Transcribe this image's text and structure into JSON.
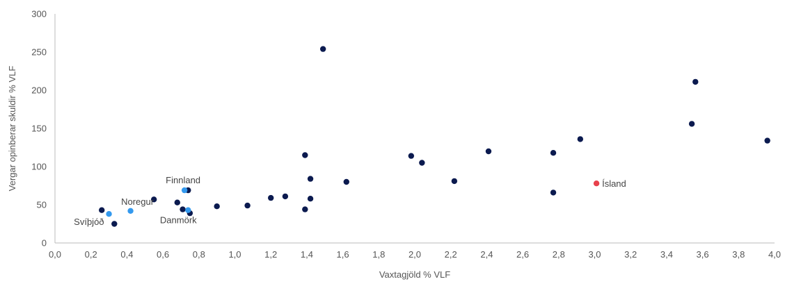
{
  "chart_data": {
    "type": "scatter",
    "title": "",
    "xlabel": "Vaxtagjöld % VLF",
    "ylabel": "Vergar opinberar skuldir % VLF",
    "xlim": [
      0,
      4.0
    ],
    "ylim": [
      0,
      300
    ],
    "x_ticks": [
      "0,0",
      "0,2",
      "0,4",
      "0,6",
      "0,8",
      "1,0",
      "1,2",
      "1,4",
      "1,6",
      "1,8",
      "2,0",
      "2,2",
      "2,4",
      "2,6",
      "2,8",
      "3,0",
      "3,2",
      "3,4",
      "3,6",
      "3,8",
      "4,0"
    ],
    "y_ticks": [
      "0",
      "50",
      "100",
      "150",
      "200",
      "250",
      "300"
    ],
    "grid": false,
    "colors": {
      "default": "#0b1a4f",
      "nordic": "#3399ee",
      "iceland": "#e8414c"
    },
    "points": [
      {
        "x": 0.26,
        "y": 43,
        "group": "default"
      },
      {
        "x": 0.33,
        "y": 25,
        "group": "default"
      },
      {
        "x": 0.55,
        "y": 57,
        "group": "default"
      },
      {
        "x": 0.68,
        "y": 53,
        "group": "default"
      },
      {
        "x": 0.71,
        "y": 44,
        "group": "default"
      },
      {
        "x": 0.74,
        "y": 69,
        "group": "default"
      },
      {
        "x": 0.75,
        "y": 39,
        "group": "default"
      },
      {
        "x": 0.9,
        "y": 48,
        "group": "default"
      },
      {
        "x": 1.07,
        "y": 49,
        "group": "default"
      },
      {
        "x": 1.2,
        "y": 59,
        "group": "default"
      },
      {
        "x": 1.28,
        "y": 61,
        "group": "default"
      },
      {
        "x": 1.39,
        "y": 115,
        "group": "default"
      },
      {
        "x": 1.39,
        "y": 44,
        "group": "default"
      },
      {
        "x": 1.42,
        "y": 84,
        "group": "default"
      },
      {
        "x": 1.42,
        "y": 58,
        "group": "default"
      },
      {
        "x": 1.49,
        "y": 254,
        "group": "default"
      },
      {
        "x": 1.62,
        "y": 80,
        "group": "default"
      },
      {
        "x": 1.98,
        "y": 114,
        "group": "default"
      },
      {
        "x": 2.04,
        "y": 105,
        "group": "default"
      },
      {
        "x": 2.22,
        "y": 81,
        "group": "default"
      },
      {
        "x": 2.41,
        "y": 120,
        "group": "default"
      },
      {
        "x": 2.77,
        "y": 118,
        "group": "default"
      },
      {
        "x": 2.77,
        "y": 66,
        "group": "default"
      },
      {
        "x": 2.92,
        "y": 136,
        "group": "default"
      },
      {
        "x": 3.54,
        "y": 156,
        "group": "default"
      },
      {
        "x": 3.56,
        "y": 211,
        "group": "default"
      },
      {
        "x": 3.96,
        "y": 134,
        "group": "default"
      },
      {
        "x": 0.3,
        "y": 38,
        "group": "nordic",
        "label": "Svíþjóð",
        "anchor": "end",
        "dx": -7,
        "dy": 16
      },
      {
        "x": 0.42,
        "y": 42,
        "group": "nordic",
        "label": "Noregur",
        "anchor": "middle",
        "dx": 10,
        "dy": -9
      },
      {
        "x": 0.72,
        "y": 69,
        "group": "nordic",
        "label": "Finnland",
        "anchor": "middle",
        "dx": -2,
        "dy": -10
      },
      {
        "x": 0.74,
        "y": 43,
        "group": "nordic",
        "label": "Danmörk",
        "anchor": "middle",
        "dx": -14,
        "dy": 19
      },
      {
        "x": 3.01,
        "y": 78,
        "group": "iceland",
        "label": "Ísland",
        "anchor": "start",
        "dx": 8,
        "dy": 5
      }
    ]
  }
}
